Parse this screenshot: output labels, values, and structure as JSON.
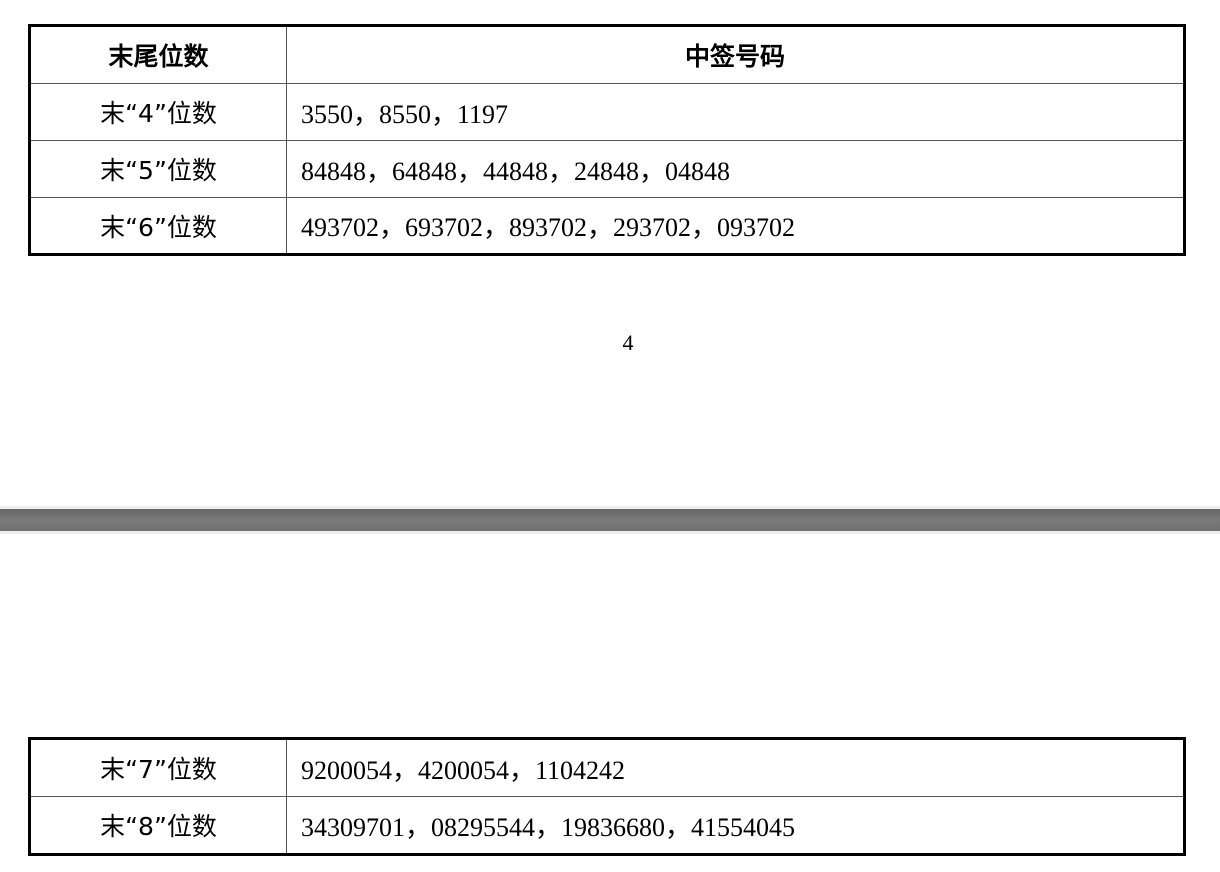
{
  "page1": {
    "headers": [
      "末尾位数",
      "中签号码"
    ],
    "rows": [
      {
        "digits": "末“4”位数",
        "numbers": "3550，8550，1197"
      },
      {
        "digits": "末“5”位数",
        "numbers": "84848，64848，44848，24848，04848"
      },
      {
        "digits": "末“6”位数",
        "numbers": "493702，693702，893702，293702，093702"
      }
    ],
    "page_number": "4"
  },
  "page2": {
    "rows": [
      {
        "digits": "末“7”位数",
        "numbers": "9200054，4200054，1104242"
      },
      {
        "digits": "末“8”位数",
        "numbers": "34309701，08295544，19836680，41554045"
      }
    ]
  },
  "colors": {
    "page_separator": "#707070"
  }
}
